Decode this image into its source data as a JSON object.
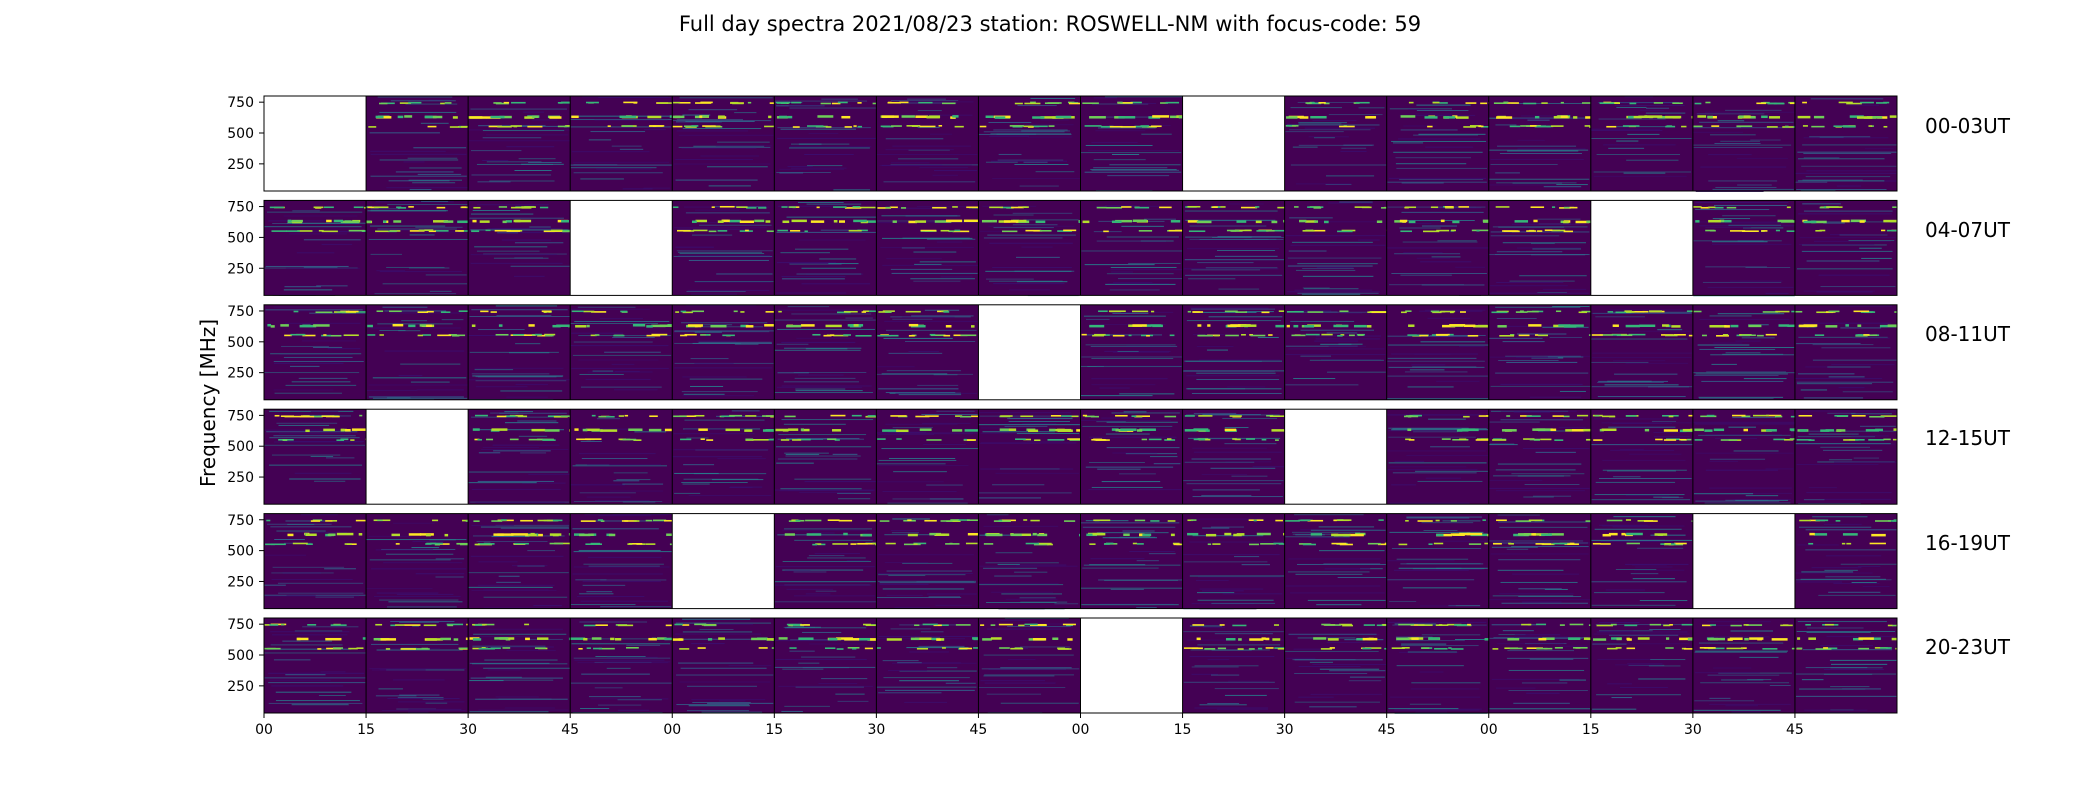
{
  "title": "Full day spectra 2021/08/23 station: ROSWELL-NM with focus-code: 59",
  "ylabel": "Frequency [MHz]",
  "colors": {
    "colormap": "viridis",
    "background": "#440154",
    "missing": "#ffffff"
  },
  "chart_data": {
    "type": "heatmap",
    "title": "Full day spectra 2021/08/23 station: ROSWELL-NM with focus-code: 59",
    "xlabel": "",
    "ylabel": "Frequency [MHz]",
    "y_ticks": [
      250,
      500,
      750
    ],
    "y_range_mhz": [
      30,
      800
    ],
    "x_tick_labels": [
      "00",
      "15",
      "30",
      "45",
      "00",
      "15",
      "30",
      "45",
      "00",
      "15",
      "30",
      "45",
      "00",
      "15",
      "30",
      "45"
    ],
    "panel_minutes": 15,
    "rows": [
      {
        "label": "00-03UT",
        "missing_panels": [
          0,
          9
        ]
      },
      {
        "label": "04-07UT",
        "missing_panels": [
          3,
          13
        ]
      },
      {
        "label": "08-11UT",
        "missing_panels": [
          7
        ]
      },
      {
        "label": "12-15UT",
        "missing_panels": [
          1,
          10
        ]
      },
      {
        "label": "16-19UT",
        "missing_panels": [
          4,
          14
        ]
      },
      {
        "label": "20-23UT",
        "missing_panels": [
          8
        ]
      }
    ],
    "bright_bands_mhz": [
      560,
      640,
      750
    ],
    "panels_per_row": 16
  }
}
